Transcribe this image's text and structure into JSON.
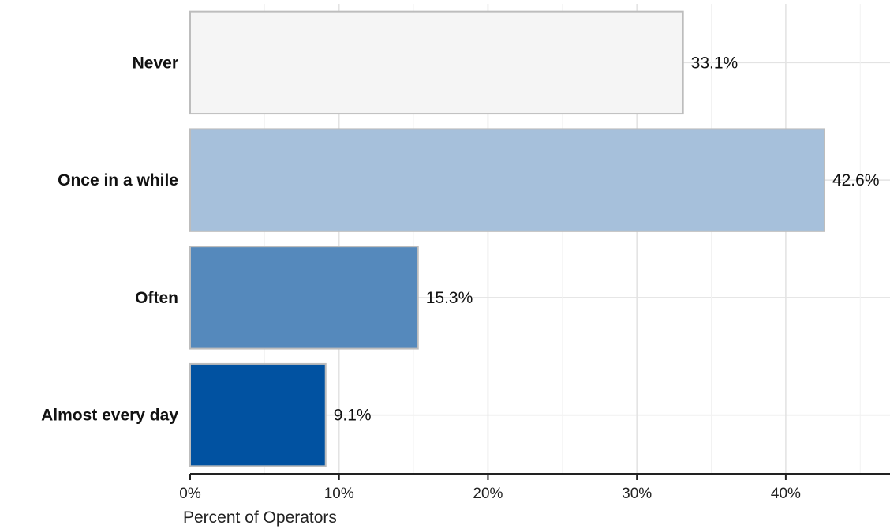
{
  "chart_data": {
    "type": "bar",
    "orientation": "horizontal",
    "categories": [
      "Never",
      "Once in a while",
      "Often",
      "Almost every day"
    ],
    "values": [
      33.1,
      42.6,
      15.3,
      9.1
    ],
    "value_labels": [
      "33.1%",
      "42.6%",
      "15.3%",
      "9.1%"
    ],
    "colors": [
      "#f5f5f5",
      "#a6c0db",
      "#5589bc",
      "#0152a1"
    ],
    "xlabel": "Percent of Operators",
    "ylabel": "",
    "xlim": [
      0,
      47
    ],
    "xticks": [
      0,
      10,
      20,
      30,
      40
    ],
    "xtick_labels": [
      "0%",
      "10%",
      "20%",
      "30%",
      "40%"
    ],
    "grid": true,
    "legend": "none"
  }
}
